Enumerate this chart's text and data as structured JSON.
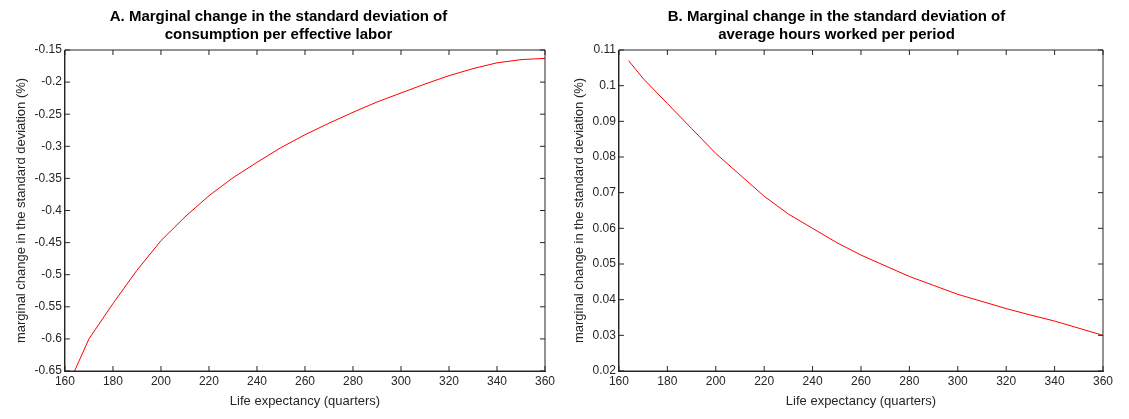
{
  "chart_data": [
    {
      "type": "line",
      "title": "A. Marginal change in the standard deviation of consumption per effective labor",
      "xlabel": "Life expectancy (quarters)",
      "ylabel": "marginal change in the standard deviation (%)",
      "x": [
        164,
        170,
        180,
        190,
        200,
        210,
        220,
        230,
        240,
        250,
        260,
        270,
        280,
        290,
        300,
        310,
        320,
        330,
        340,
        350,
        360
      ],
      "series": [
        {
          "color": "#ff0000",
          "values": [
            -0.65,
            -0.6,
            -0.545,
            -0.493,
            -0.447,
            -0.41,
            -0.377,
            -0.349,
            -0.325,
            -0.302,
            -0.282,
            -0.264,
            -0.247,
            -0.231,
            -0.217,
            -0.203,
            -0.19,
            -0.179,
            -0.17,
            -0.165,
            -0.163
          ]
        }
      ],
      "xlim": [
        160,
        360
      ],
      "xticks": [
        160,
        180,
        200,
        220,
        240,
        260,
        280,
        300,
        320,
        340,
        360
      ],
      "ylim": [
        -0.65,
        -0.15
      ],
      "yticks": [
        -0.65,
        -0.6,
        -0.55,
        -0.5,
        -0.45,
        -0.4,
        -0.35,
        -0.3,
        -0.25,
        -0.2,
        -0.15
      ],
      "grid": false,
      "legend": false,
      "marker": "none",
      "line_style": "solid"
    },
    {
      "type": "line",
      "title": "B. Marginal change in the standard deviation of average hours worked per period",
      "xlabel": "Life expectancy (quarters)",
      "ylabel": "marginal change in the standard deviation (%)",
      "x": [
        164,
        170,
        180,
        190,
        200,
        210,
        220,
        230,
        240,
        250,
        260,
        270,
        280,
        290,
        300,
        310,
        320,
        330,
        340,
        350,
        360
      ],
      "series": [
        {
          "color": "#ff0000",
          "values": [
            0.107,
            0.102,
            0.095,
            0.088,
            0.081,
            0.075,
            0.069,
            0.064,
            0.06,
            0.056,
            0.0525,
            0.0495,
            0.0465,
            0.044,
            0.0415,
            0.0395,
            0.0375,
            0.0357,
            0.034,
            0.032,
            0.03
          ]
        }
      ],
      "xlim": [
        160,
        360
      ],
      "xticks": [
        160,
        180,
        200,
        220,
        240,
        260,
        280,
        300,
        320,
        340,
        360
      ],
      "ylim": [
        0.02,
        0.11
      ],
      "yticks": [
        0.02,
        0.03,
        0.04,
        0.05,
        0.06,
        0.07,
        0.08,
        0.09,
        0.1,
        0.11
      ],
      "grid": false,
      "legend": false,
      "marker": "none",
      "line_style": "solid"
    }
  ]
}
